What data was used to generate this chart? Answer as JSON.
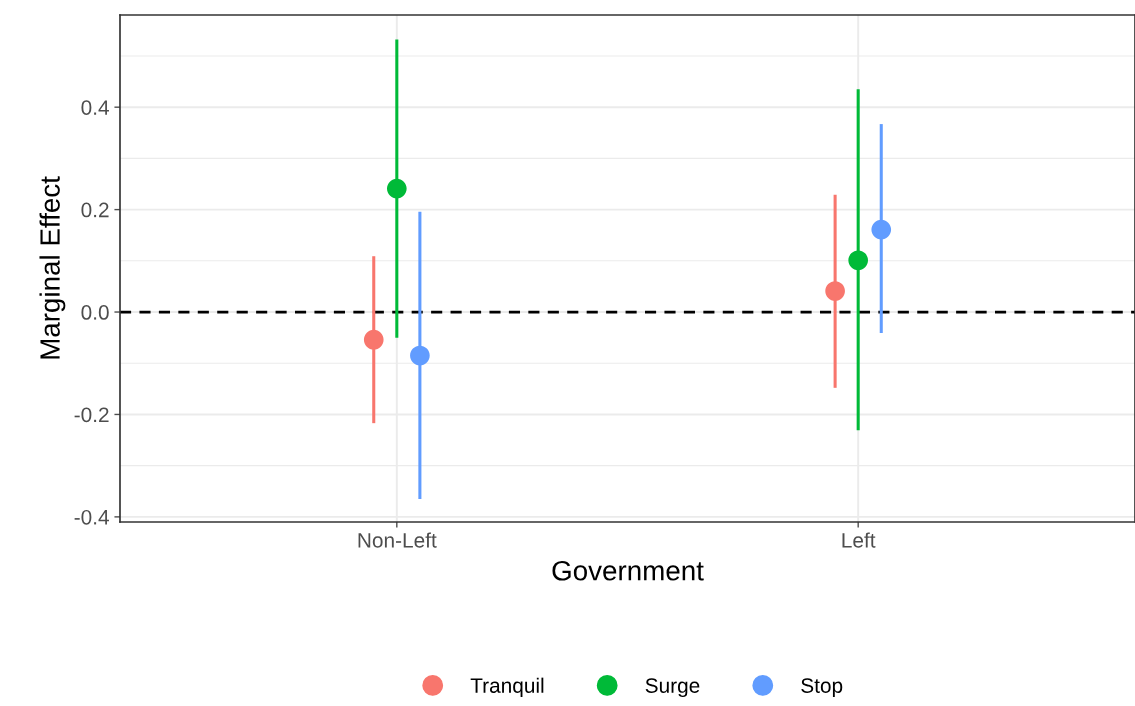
{
  "chart_data": {
    "type": "scatter",
    "xlabel": "Government",
    "ylabel": "Marginal Effect",
    "categories": [
      "Non-Left",
      "Left"
    ],
    "series": [
      {
        "name": "Tranquil",
        "color": "#f8766d",
        "values": [
          -0.054,
          0.041
        ],
        "errors": [
          [
            -0.217,
            0.109
          ],
          [
            -0.148,
            0.229
          ]
        ]
      },
      {
        "name": "Surge",
        "color": "#00ba38",
        "values": [
          0.241,
          0.101
        ],
        "errors": [
          [
            -0.05,
            0.532
          ],
          [
            -0.231,
            0.435
          ]
        ]
      },
      {
        "name": "Stop",
        "color": "#619cff",
        "values": [
          -0.085,
          0.161
        ],
        "errors": [
          [
            -0.365,
            0.196
          ],
          [
            -0.041,
            0.367
          ]
        ]
      }
    ],
    "ylim": [
      -0.41,
      0.58
    ],
    "yticks": [
      -0.4,
      -0.2,
      {
        "value": 0,
        "label": "0.0"
      },
      0.2,
      0.4
    ],
    "ref_lines": [
      {
        "axis": "y",
        "value": 0,
        "color": "#000000",
        "line_style": "dashed"
      }
    ],
    "grid": true,
    "legend": "bottom",
    "marker": "circle"
  }
}
